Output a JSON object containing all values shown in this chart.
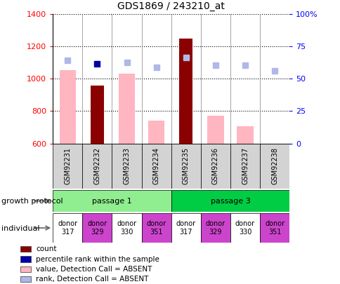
{
  "title": "GDS1869 / 243210_at",
  "samples": [
    "GSM92231",
    "GSM92232",
    "GSM92233",
    "GSM92234",
    "GSM92235",
    "GSM92236",
    "GSM92237",
    "GSM92238"
  ],
  "count_values": [
    null,
    960,
    null,
    null,
    1250,
    null,
    null,
    null
  ],
  "value_absent": [
    1055,
    null,
    1030,
    740,
    null,
    770,
    705,
    null
  ],
  "percentile_rank": [
    null,
    1095,
    null,
    null,
    null,
    null,
    null,
    null
  ],
  "rank_absent": [
    1115,
    null,
    1100,
    1070,
    1130,
    1085,
    1085,
    1048
  ],
  "ylim": [
    600,
    1400
  ],
  "yticks": [
    600,
    800,
    1000,
    1200,
    1400
  ],
  "y2lim": [
    0,
    100
  ],
  "y2ticks": [
    0,
    25,
    50,
    75,
    100
  ],
  "y2ticklabels": [
    "0",
    "25",
    "50",
    "75",
    "100%"
  ],
  "passages": [
    {
      "label": "passage 1",
      "color": "#90ee90",
      "start": 0,
      "end": 4
    },
    {
      "label": "passage 3",
      "color": "#00cc44",
      "start": 4,
      "end": 8
    }
  ],
  "donors": [
    "donor\n317",
    "donor\n329",
    "donor\n330",
    "donor\n351",
    "donor\n317",
    "donor\n329",
    "donor\n330",
    "donor\n351"
  ],
  "donor_colors": [
    "#ffffff",
    "#cc44cc",
    "#ffffff",
    "#cc44cc",
    "#ffffff",
    "#cc44cc",
    "#ffffff",
    "#cc44cc"
  ],
  "color_count": "#8b0000",
  "color_percentile": "#0000aa",
  "color_value_absent": "#ffb6c1",
  "color_rank_absent": "#b0b8e8",
  "growth_protocol_label": "growth protocol",
  "individual_label": "individual",
  "legend_items": [
    {
      "label": "count",
      "color": "#8b0000"
    },
    {
      "label": "percentile rank within the sample",
      "color": "#0000aa"
    },
    {
      "label": "value, Detection Call = ABSENT",
      "color": "#ffb6c1"
    },
    {
      "label": "rank, Detection Call = ABSENT",
      "color": "#b0b8e8"
    }
  ]
}
